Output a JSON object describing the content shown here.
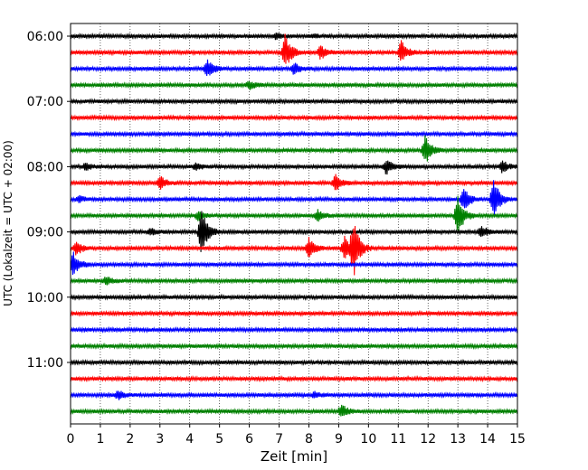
{
  "chart_data": {
    "type": "line",
    "title": "",
    "xlabel": "Zeit  [min]",
    "ylabel": "UTC (Lokalzeit = UTC + 02:00)",
    "xlim": [
      0,
      15
    ],
    "x_ticks": [
      "0",
      "1",
      "2",
      "3",
      "4",
      "5",
      "6",
      "7",
      "8",
      "9",
      "10",
      "11",
      "12",
      "13",
      "14",
      "15"
    ],
    "y_tick_labels": [
      {
        "label": "06:00",
        "trace_index": 0
      },
      {
        "label": "07:00",
        "trace_index": 4
      },
      {
        "label": "08:00",
        "trace_index": 8
      },
      {
        "label": "09:00",
        "trace_index": 12
      },
      {
        "label": "10:00",
        "trace_index": 16
      },
      {
        "label": "11:00",
        "trace_index": 20
      }
    ],
    "grid": "vertical dotted lines at every minute",
    "trace_interval_minutes": 15,
    "series_colors": [
      "#000000",
      "#ff0000",
      "#0000ff",
      "#008000"
    ],
    "traces": [
      {
        "start": "06:00",
        "color": "#000000",
        "events": [
          {
            "t": 6.9,
            "amp": 0.35
          },
          {
            "t": 8.2,
            "amp": 0.15
          }
        ]
      },
      {
        "start": "06:15",
        "color": "#ff0000",
        "events": [
          {
            "t": 7.2,
            "amp": 2.2
          },
          {
            "t": 8.4,
            "amp": 0.8
          },
          {
            "t": 11.1,
            "amp": 1.4
          }
        ]
      },
      {
        "start": "06:30",
        "color": "#0000ff",
        "events": [
          {
            "t": 4.6,
            "amp": 1.1
          },
          {
            "t": 7.5,
            "amp": 0.7
          }
        ]
      },
      {
        "start": "06:45",
        "color": "#008000",
        "events": [
          {
            "t": 6.0,
            "amp": 0.45
          }
        ]
      },
      {
        "start": "07:00",
        "color": "#000000",
        "events": []
      },
      {
        "start": "07:15",
        "color": "#ff0000",
        "events": []
      },
      {
        "start": "07:30",
        "color": "#0000ff",
        "events": []
      },
      {
        "start": "07:45",
        "color": "#008000",
        "events": [
          {
            "t": 11.9,
            "amp": 1.8
          }
        ]
      },
      {
        "start": "08:00",
        "color": "#000000",
        "events": [
          {
            "t": 10.6,
            "amp": 0.9
          },
          {
            "t": 0.5,
            "amp": 0.4
          },
          {
            "t": 4.2,
            "amp": 0.4
          },
          {
            "t": 14.5,
            "amp": 0.7
          }
        ]
      },
      {
        "start": "08:15",
        "color": "#ff0000",
        "events": [
          {
            "t": 8.9,
            "amp": 0.9
          },
          {
            "t": 3.0,
            "amp": 0.8
          }
        ]
      },
      {
        "start": "08:30",
        "color": "#0000ff",
        "events": [
          {
            "t": 13.2,
            "amp": 1.6
          },
          {
            "t": 14.2,
            "amp": 2.6
          },
          {
            "t": 0.3,
            "amp": 0.3
          }
        ]
      },
      {
        "start": "08:45",
        "color": "#008000",
        "events": [
          {
            "t": 13.0,
            "amp": 2.5
          },
          {
            "t": 4.3,
            "amp": 0.6
          },
          {
            "t": 8.3,
            "amp": 0.6
          }
        ]
      },
      {
        "start": "09:00",
        "color": "#000000",
        "events": [
          {
            "t": 4.4,
            "amp": 3.0
          },
          {
            "t": 13.8,
            "amp": 0.7
          },
          {
            "t": 2.7,
            "amp": 0.4
          }
        ]
      },
      {
        "start": "09:15",
        "color": "#ff0000",
        "events": [
          {
            "t": 8.0,
            "amp": 1.2
          },
          {
            "t": 9.2,
            "amp": 1.4
          },
          {
            "t": 0.2,
            "amp": 0.8
          },
          {
            "t": 9.5,
            "amp": 3.5
          }
        ]
      },
      {
        "start": "09:30",
        "color": "#0000ff",
        "events": [
          {
            "t": 0.1,
            "amp": 1.4
          }
        ]
      },
      {
        "start": "09:45",
        "color": "#008000",
        "events": [
          {
            "t": 1.2,
            "amp": 0.5
          }
        ]
      },
      {
        "start": "10:00",
        "color": "#000000",
        "events": []
      },
      {
        "start": "10:15",
        "color": "#ff0000",
        "events": []
      },
      {
        "start": "10:30",
        "color": "#0000ff",
        "events": []
      },
      {
        "start": "10:45",
        "color": "#008000",
        "events": []
      },
      {
        "start": "11:00",
        "color": "#000000",
        "events": []
      },
      {
        "start": "11:15",
        "color": "#ff0000",
        "events": []
      },
      {
        "start": "11:30",
        "color": "#0000ff",
        "events": [
          {
            "t": 1.6,
            "amp": 0.5
          },
          {
            "t": 8.2,
            "amp": 0.3
          }
        ]
      },
      {
        "start": "11:45",
        "color": "#008000",
        "events": [
          {
            "t": 9.1,
            "amp": 0.8
          }
        ]
      }
    ]
  }
}
